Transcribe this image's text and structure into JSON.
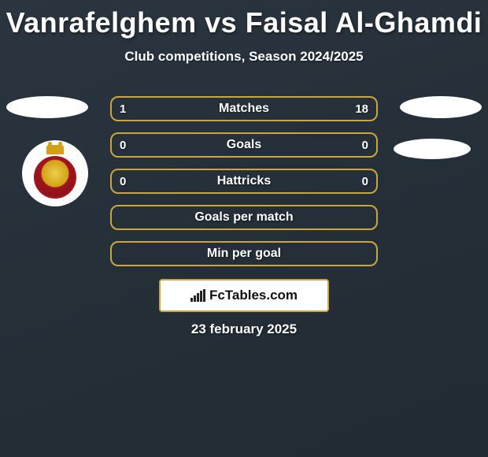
{
  "title": "Vanrafelghem vs Faisal Al-Ghamdi",
  "subtitle": "Club competitions, Season 2024/2025",
  "stats": {
    "rows": [
      {
        "left": "1",
        "label": "Matches",
        "right": "18",
        "type": "both"
      },
      {
        "left": "0",
        "label": "Goals",
        "right": "0",
        "type": "both"
      },
      {
        "left": "0",
        "label": "Hattricks",
        "right": "0",
        "type": "both"
      },
      {
        "left": "",
        "label": "Goals per match",
        "right": "",
        "type": "center"
      },
      {
        "left": "",
        "label": "Min per goal",
        "right": "",
        "type": "center"
      }
    ],
    "border_color": "#c9a63f",
    "text_color": "#fefefe"
  },
  "footer": {
    "brand": "FcTables.com"
  },
  "date": "23 february 2025",
  "background": {
    "gradient_start": "#2a3540",
    "gradient_end": "#222a32"
  },
  "decorations": {
    "ellipse_color": "#ffffff",
    "crest_primary": "#a0141e",
    "crest_secondary": "#d4a017"
  }
}
